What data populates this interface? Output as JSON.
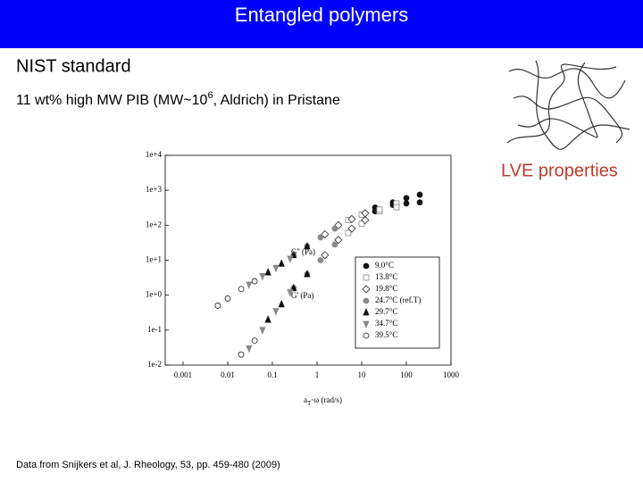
{
  "header": {
    "title": "Entangled polymers"
  },
  "body": {
    "heading": "NIST standard",
    "line_parts": [
      "11 wt% high MW PIB (MW~10",
      "6",
      ", Aldrich) in Pristane"
    ],
    "callout": "LVE properties",
    "footer": "Data from Snijkers et al, J. Rheology, 53, pp. 459-480 (2009)"
  },
  "chart_data": {
    "type": "scatter",
    "log_x": true,
    "log_y": true,
    "xlabel_parts": [
      "a",
      "T",
      "·ω (rad/s)"
    ],
    "annotations": [
      "G'' (Pa)",
      "G' (Pa)"
    ],
    "xlim": [
      0.001,
      1000
    ],
    "xticks": [
      0.001,
      0.01,
      0.1,
      1,
      10,
      100,
      1000
    ],
    "ylim": [
      0.01,
      10000
    ],
    "yticks": [
      {
        "value": 0.01,
        "label": "1e-2"
      },
      {
        "value": 0.1,
        "label": "1e-1"
      },
      {
        "value": 1,
        "label": "1e+0"
      },
      {
        "value": 10,
        "label": "1e+1"
      },
      {
        "value": 100,
        "label": "1e+2"
      },
      {
        "value": 1000,
        "label": "1e+3"
      },
      {
        "value": 10000,
        "label": "1e+4"
      }
    ],
    "legend_position": "right",
    "series": [
      {
        "name": "9.0°C",
        "marker": "circle",
        "filled": true,
        "color": "#111111",
        "x": [
          20,
          50,
          100,
          200
        ],
        "values": [
          250,
          450,
          600,
          750
        ],
        "loss_values": [
          320,
          380,
          420,
          450
        ]
      },
      {
        "name": "13.8°C",
        "marker": "square",
        "filled": false,
        "color": "#888888",
        "x": [
          5,
          10,
          25,
          60
        ],
        "values": [
          60,
          110,
          250,
          420
        ],
        "loss_values": [
          140,
          200,
          280,
          330
        ]
      },
      {
        "name": "19.8°C",
        "marker": "diamond",
        "filled": false,
        "color": "#222222",
        "x": [
          1.5,
          3,
          6,
          12
        ],
        "values": [
          14,
          38,
          80,
          140
        ],
        "loss_values": [
          55,
          100,
          150,
          220
        ]
      },
      {
        "name": "24.7°C (ref.T)",
        "marker": "circle",
        "filled": true,
        "color": "#888888",
        "x": [
          0.3,
          0.6,
          1.2,
          2.5
        ],
        "values": [
          1.6,
          4,
          10,
          28
        ],
        "loss_values": [
          14,
          25,
          45,
          80
        ]
      },
      {
        "name": "29.7°C",
        "marker": "triangle",
        "filled": true,
        "color": "#111111",
        "x": [
          0.08,
          0.16,
          0.3,
          0.6
        ],
        "values": [
          0.2,
          0.55,
          1.6,
          4
        ],
        "loss_values": [
          4.5,
          8,
          14,
          25
        ]
      },
      {
        "name": "34.7°C",
        "marker": "triangle-down",
        "filled": true,
        "color": "#888888",
        "x": [
          0.03,
          0.06,
          0.12,
          0.25
        ],
        "values": [
          0.03,
          0.1,
          0.35,
          1.2
        ],
        "loss_values": [
          2,
          3.5,
          6,
          11
        ]
      },
      {
        "name": "39.5°C",
        "marker": "circle",
        "filled": false,
        "color": "#222222",
        "x": [
          0.006,
          0.01,
          0.02,
          0.04
        ],
        "values": [
          null,
          null,
          0.02,
          0.05
        ],
        "loss_values": [
          0.5,
          0.8,
          1.5,
          2.5
        ]
      }
    ]
  }
}
